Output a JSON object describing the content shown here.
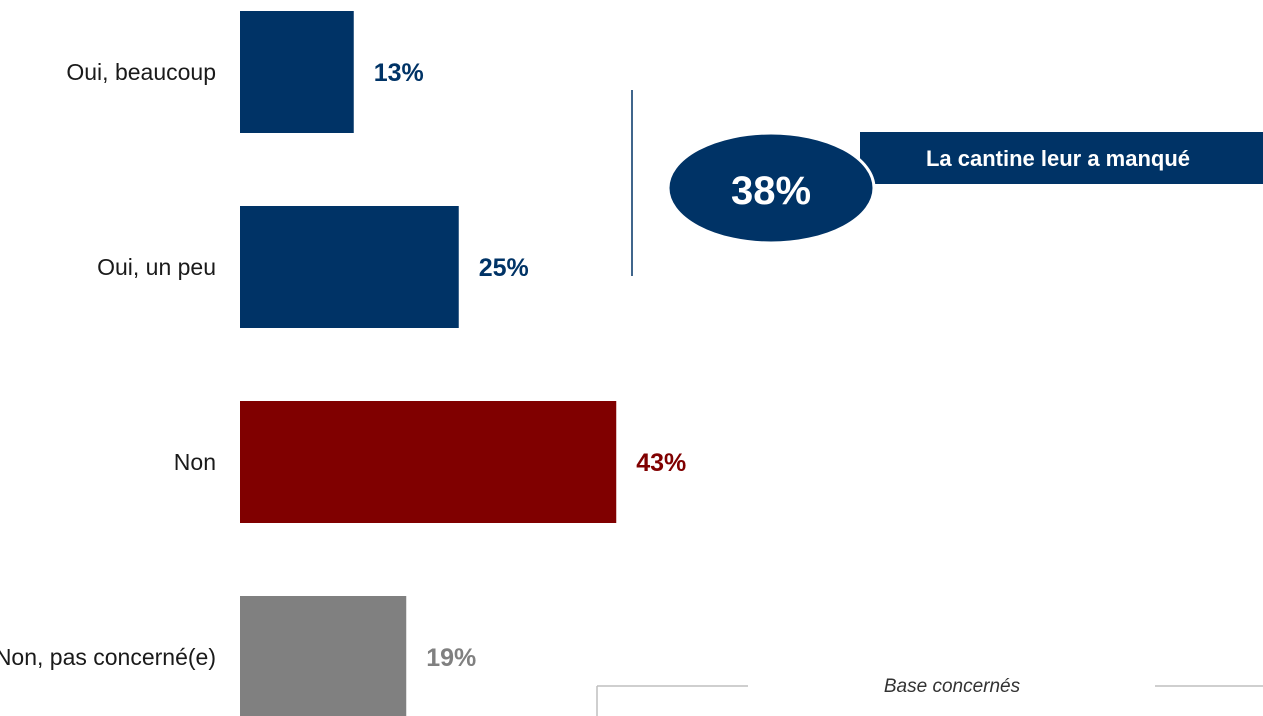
{
  "chart_data": {
    "type": "bar",
    "orientation": "horizontal",
    "categories": [
      "Oui, beaucoup",
      "Oui, un peu",
      "Non",
      "Non, pas concerné(e)"
    ],
    "values": [
      13,
      25,
      43,
      19
    ],
    "value_labels": [
      "13%",
      "25%",
      "43%",
      "19%"
    ],
    "colors": [
      "#003366",
      "#003366",
      "#800000",
      "#808080"
    ],
    "unit": "%",
    "xlim": [
      0,
      50
    ],
    "grid": false,
    "legend": "none"
  },
  "callout": {
    "total": "38%",
    "label": "La cantine leur a manqué",
    "color": "#003366"
  },
  "base_note": "Base concernés"
}
